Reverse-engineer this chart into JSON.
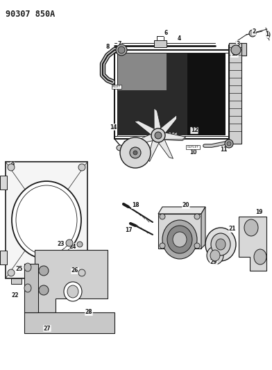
{
  "title": "90307 850A",
  "bg_color": "#ffffff",
  "line_color": "#1a1a1a",
  "title_fontsize": 8.5,
  "fig_width": 3.92,
  "fig_height": 5.33,
  "dpi": 100
}
